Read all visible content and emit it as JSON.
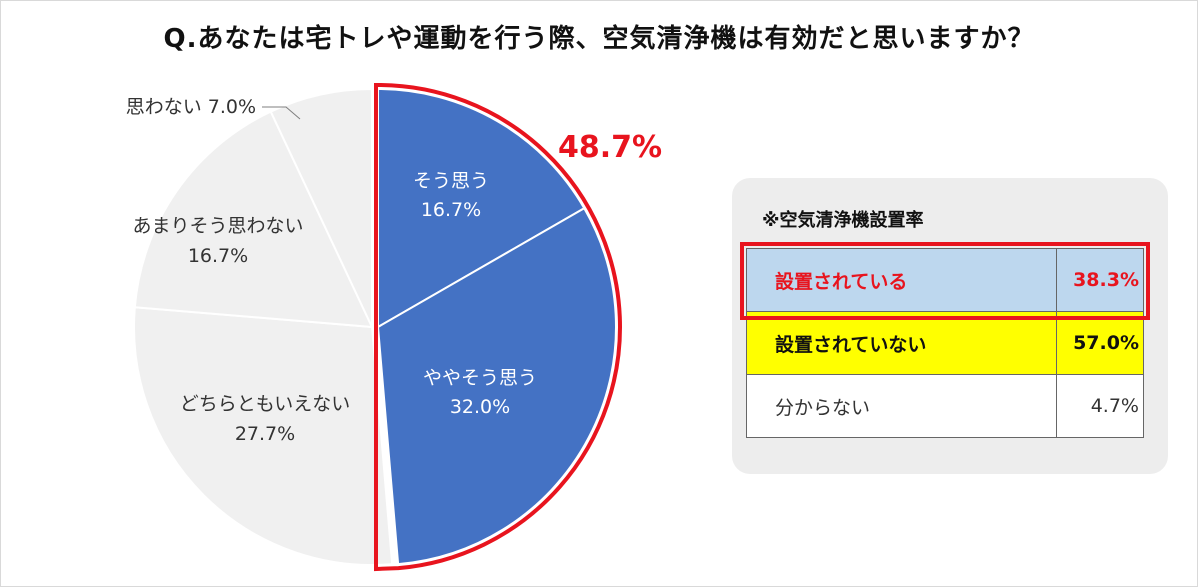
{
  "title": "Q.あなたは宅トレや運動を行う際、空気清浄機は有効だと思いますか？",
  "chart_data": {
    "type": "pie",
    "slices": [
      {
        "label": "そう思う",
        "value": 16.7,
        "value_label": "16.7%"
      },
      {
        "label": "ややそう思う",
        "value": 32.0,
        "value_label": "32.0%"
      },
      {
        "label": "どちらともいえない",
        "value": 27.7,
        "value_label": "27.7%"
      },
      {
        "label": "あまりそう思わない",
        "value": 16.7,
        "value_label": "16.7%"
      },
      {
        "label": "思わない",
        "value": 7.0,
        "value_label": "7.0%"
      }
    ],
    "highlight": {
      "label": "48.7%",
      "slices": [
        "そう思う",
        "ややそう思う"
      ]
    },
    "colors": {
      "highlight_fill": "#4472c4",
      "other_fill": "#f0f0f0",
      "highlight_outline": "#e8141e",
      "highlight_text": "#ffffff",
      "other_text": "#333333",
      "separator": "#ffffff"
    }
  },
  "table": {
    "title": "※空気清浄機設置率",
    "rows": [
      {
        "label": "設置されている",
        "value": "38.3%"
      },
      {
        "label": "設置されていない",
        "value": "57.0%"
      },
      {
        "label": "分からない",
        "value": "4.7%"
      }
    ]
  }
}
